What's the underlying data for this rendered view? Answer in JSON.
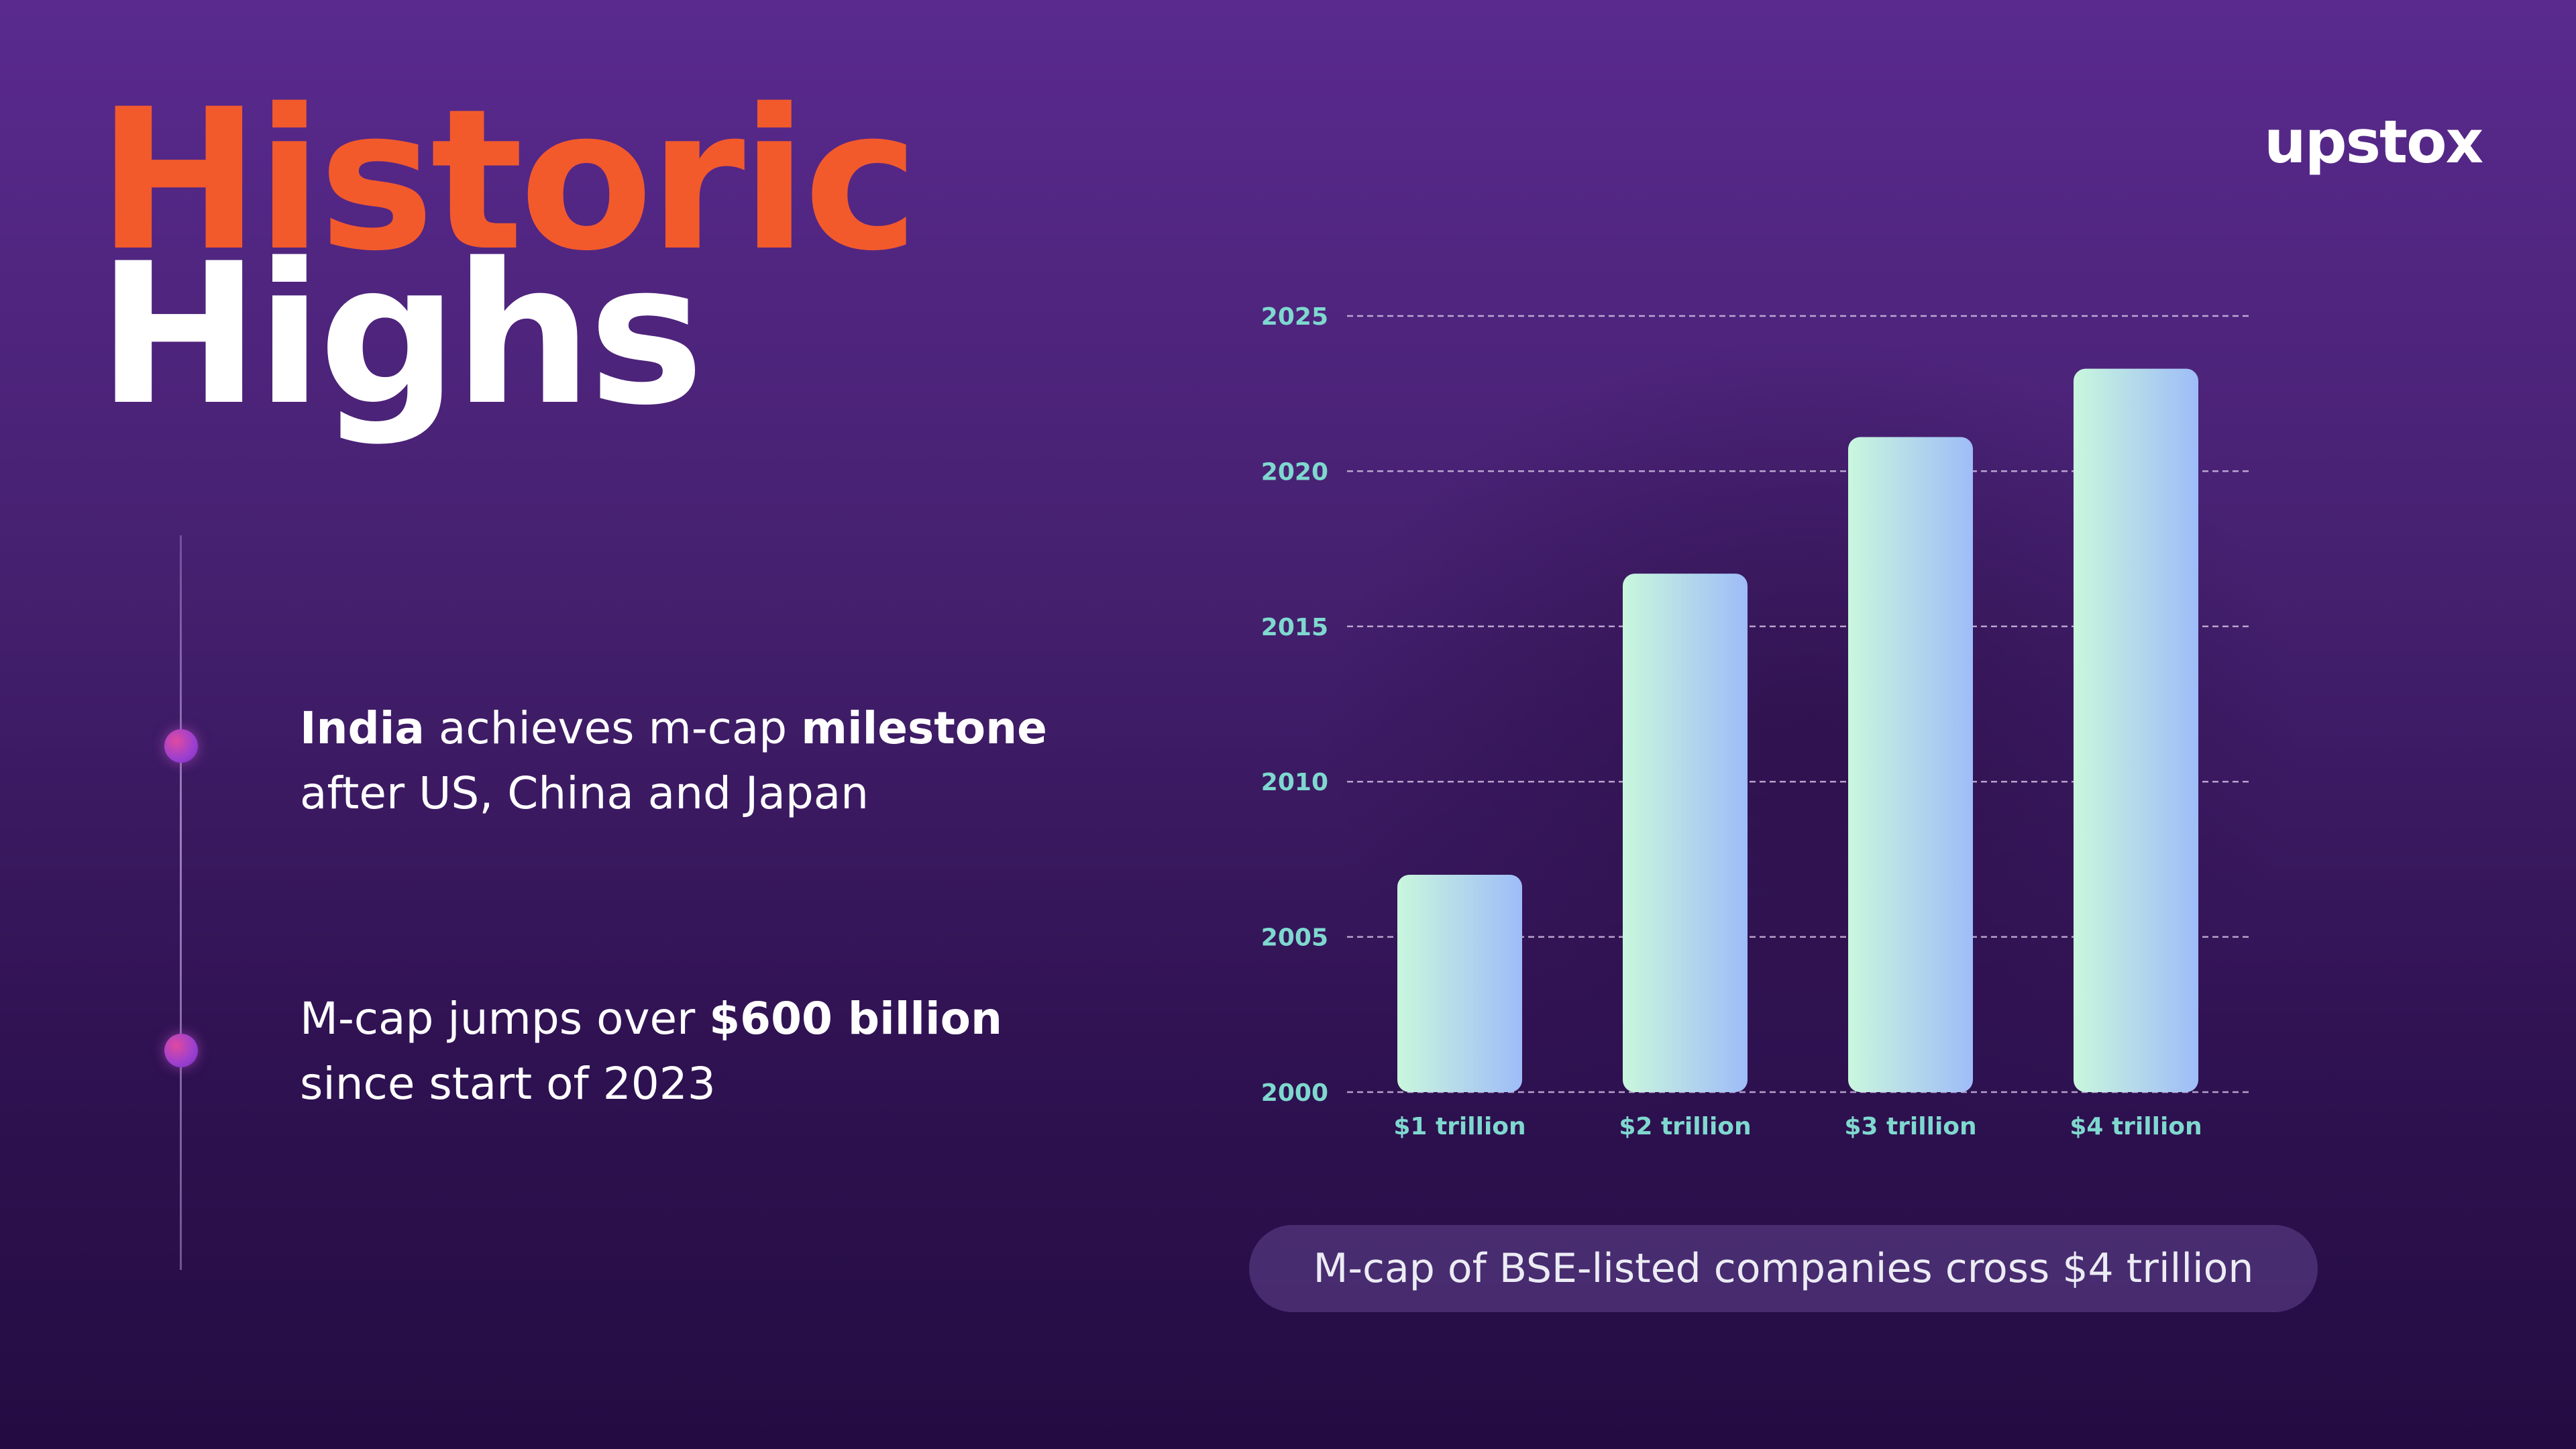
{
  "header": {
    "title_line1": "Historic",
    "title_line2": "Highs",
    "logo": "upstox"
  },
  "points": [
    {
      "pre": "",
      "b1": "India",
      "mid": " achieves m-cap ",
      "b2": "milestone",
      "post": " after US, China and Japan"
    },
    {
      "pre": "M-cap jumps over ",
      "b1": "$600 billion",
      "mid": " since start of 2023",
      "b2": "",
      "post": ""
    }
  ],
  "caption": "M-cap of BSE-listed companies cross $4 trillion",
  "colors": {
    "title_accent": "#f25a2c",
    "bar_gradient_start": "#c9f7dd",
    "bar_gradient_end": "#9ebcf8",
    "axis_label": "#7fd8cf",
    "background_top": "#5a2a8f",
    "background_bottom": "#240c42"
  },
  "chart_data": {
    "type": "bar",
    "orientation": "vertical",
    "categories": [
      "$1 trillion",
      "$2 trillion",
      "$3 trillion",
      "$4 trillion"
    ],
    "values": [
      2007.0,
      2016.7,
      2021.1,
      2023.3
    ],
    "title": "",
    "xlabel": "",
    "ylabel": "",
    "yticks": [
      2000,
      2005,
      2010,
      2015,
      2020,
      2025
    ],
    "ylim": [
      2000,
      2025
    ],
    "grid": true,
    "grid_style": "dashed"
  }
}
